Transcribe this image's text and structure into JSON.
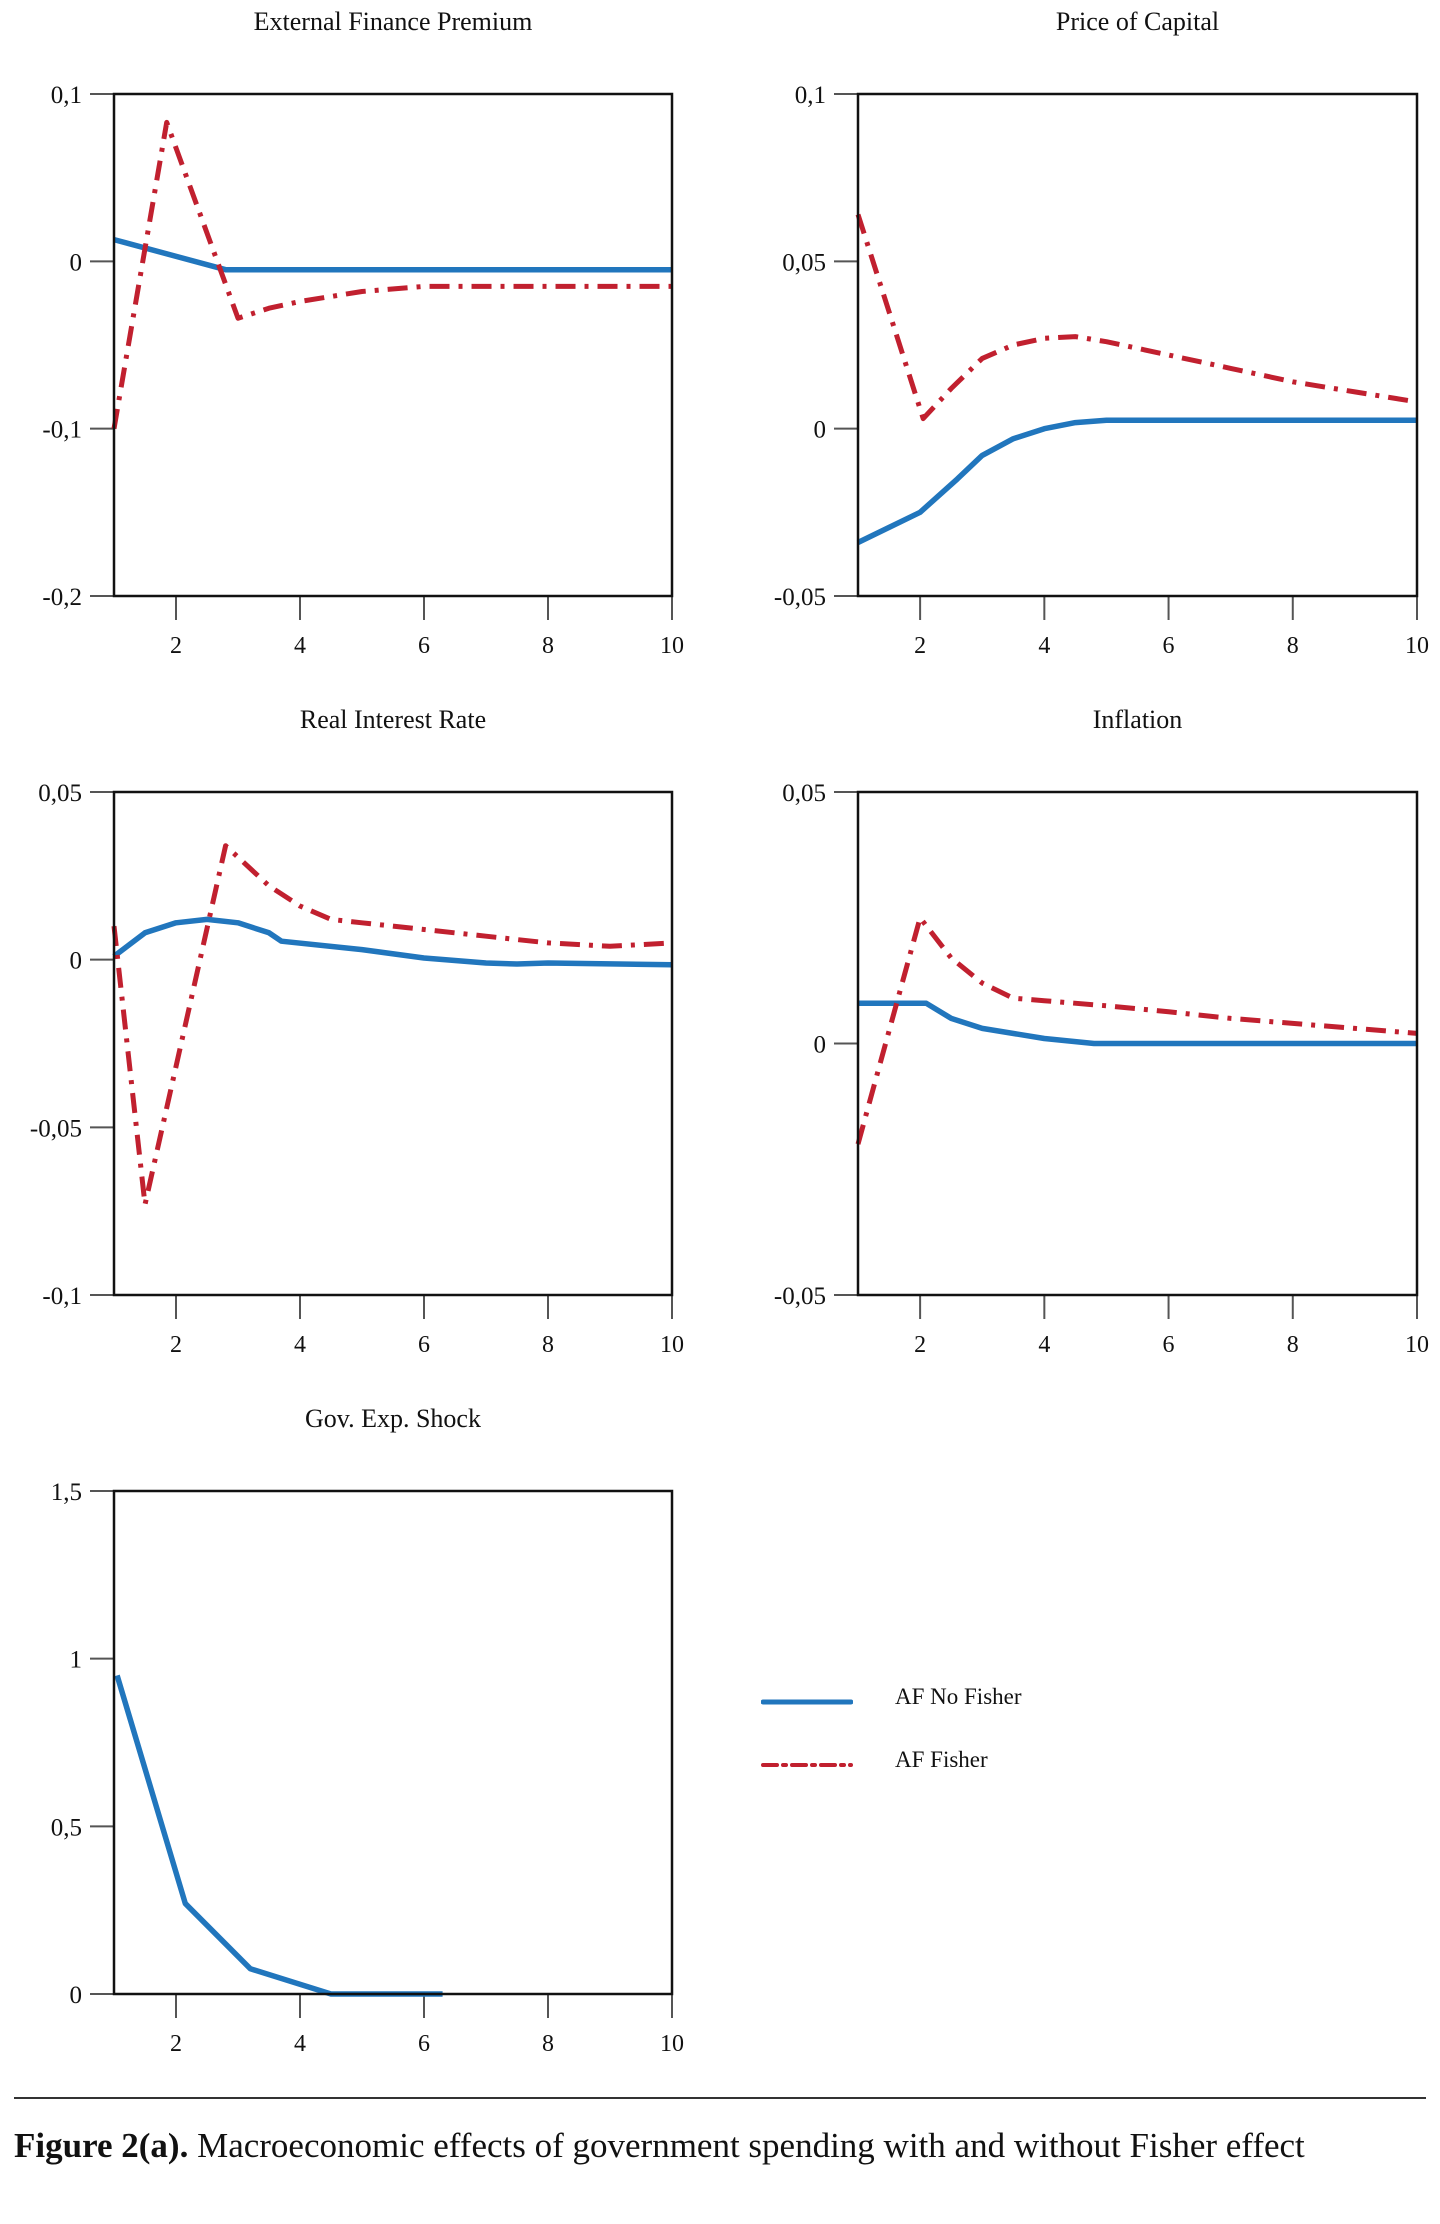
{
  "colors": {
    "no_fisher": "#2176bd",
    "fisher": "#c1202f"
  },
  "legend": [
    {
      "label": "AF No Fisher",
      "style": "solid",
      "color": "#2176bd"
    },
    {
      "label": "AF Fisher",
      "style": "dash-dot",
      "color": "#c1202f"
    }
  ],
  "caption": {
    "label": "Figure 2(a).",
    "text": "Macroeconomic effects of government spending with and without Fisher effect"
  },
  "chart_data": [
    {
      "type": "line",
      "title": "External Finance Premium",
      "xlim": [
        1,
        10
      ],
      "ylim": [
        -0.2,
        0.1
      ],
      "xticks": [
        2,
        4,
        6,
        8,
        10
      ],
      "xtick_labels": [
        "2",
        "4",
        "6",
        "8",
        "10"
      ],
      "yticks": [
        0.1,
        0,
        -0.1,
        -0.2
      ],
      "ytick_labels": [
        "0,1",
        "0",
        "-0,1",
        "-0,2"
      ],
      "series": [
        {
          "name": "AF No Fisher",
          "x": [
            1,
            2.8,
            3,
            10
          ],
          "y": [
            0.013,
            -0.005,
            -0.005,
            -0.005
          ]
        },
        {
          "name": "AF Fisher",
          "x": [
            1,
            1.85,
            3,
            3.5,
            4,
            5,
            6,
            7,
            8,
            10
          ],
          "y": [
            -0.1,
            0.083,
            -0.034,
            -0.028,
            -0.024,
            -0.018,
            -0.015,
            -0.015,
            -0.015,
            -0.015
          ]
        }
      ]
    },
    {
      "type": "line",
      "title": "Price of Capital",
      "xlim": [
        1,
        10
      ],
      "ylim": [
        -0.05,
        0.1
      ],
      "xticks": [
        2,
        4,
        6,
        8,
        10
      ],
      "xtick_labels": [
        "2",
        "4",
        "6",
        "8",
        "10"
      ],
      "yticks": [
        0.1,
        0.05,
        0,
        -0.05
      ],
      "ytick_labels": [
        "0,1",
        "0,05",
        "0",
        "-0,05"
      ],
      "series": [
        {
          "name": "AF No Fisher",
          "x": [
            1,
            2,
            2.6,
            3,
            3.5,
            4,
            4.5,
            5,
            10
          ],
          "y": [
            -0.034,
            -0.025,
            -0.015,
            -0.008,
            -0.003,
            0,
            0.0018,
            0.0025,
            0.0025
          ]
        },
        {
          "name": "AF Fisher",
          "x": [
            1,
            2.05,
            2.5,
            3,
            3.5,
            4,
            4.5,
            5,
            6,
            7,
            8,
            9,
            10
          ],
          "y": [
            0.064,
            0.003,
            0.012,
            0.021,
            0.025,
            0.027,
            0.0275,
            0.026,
            0.022,
            0.018,
            0.014,
            0.011,
            0.008
          ]
        }
      ]
    },
    {
      "type": "line",
      "title": "Real Interest Rate",
      "xlim": [
        1,
        10
      ],
      "ylim": [
        -0.1,
        0.05
      ],
      "xticks": [
        2,
        4,
        6,
        8,
        10
      ],
      "xtick_labels": [
        "2",
        "4",
        "6",
        "8",
        "10"
      ],
      "yticks": [
        0.05,
        0,
        -0.05,
        -0.1
      ],
      "ytick_labels": [
        "0,05",
        "0",
        "-0,05",
        "-0,1"
      ],
      "series": [
        {
          "name": "AF No Fisher",
          "x": [
            1,
            1.5,
            2,
            2.5,
            3,
            3.5,
            3.7,
            5,
            6,
            7,
            7.5,
            8,
            10
          ],
          "y": [
            0.001,
            0.008,
            0.011,
            0.012,
            0.011,
            0.008,
            0.0055,
            0.003,
            0.0005,
            -0.001,
            -0.0013,
            -0.001,
            -0.0015
          ]
        },
        {
          "name": "AF Fisher",
          "x": [
            1,
            1.5,
            2.8,
            3.5,
            4,
            4.5,
            5,
            6,
            7,
            8,
            9,
            10
          ],
          "y": [
            0.01,
            -0.073,
            0.034,
            0.022,
            0.016,
            0.012,
            0.011,
            0.009,
            0.007,
            0.005,
            0.004,
            0.005
          ]
        }
      ]
    },
    {
      "type": "line",
      "title": "Inflation",
      "xlim": [
        1,
        10
      ],
      "ylim": [
        -0.05,
        0.05
      ],
      "xticks": [
        2,
        4,
        6,
        8,
        10
      ],
      "xtick_labels": [
        "2",
        "4",
        "6",
        "8",
        "10"
      ],
      "yticks": [
        0.05,
        0,
        -0.05
      ],
      "ytick_labels": [
        "0,05",
        "0",
        "-0,05"
      ],
      "series": [
        {
          "name": "AF No Fisher",
          "x": [
            1,
            2.1,
            2.5,
            3,
            4,
            4.8,
            10
          ],
          "y": [
            0.008,
            0.008,
            0.005,
            0.003,
            0.001,
            0,
            0
          ]
        },
        {
          "name": "AF Fisher",
          "x": [
            1,
            2,
            2.5,
            3,
            3.5,
            4,
            5,
            6,
            7,
            8,
            9,
            10
          ],
          "y": [
            -0.02,
            0.025,
            0.017,
            0.012,
            0.009,
            0.0085,
            0.0075,
            0.0063,
            0.005,
            0.004,
            0.003,
            0.002
          ]
        }
      ]
    },
    {
      "type": "line",
      "title": "Gov. Exp. Shock",
      "xlim": [
        1,
        10
      ],
      "ylim": [
        0,
        1.5
      ],
      "xticks": [
        2,
        4,
        6,
        8,
        10
      ],
      "xtick_labels": [
        "2",
        "4",
        "6",
        "8",
        "10"
      ],
      "yticks": [
        1.5,
        1,
        0.5,
        0
      ],
      "ytick_labels": [
        "1,5",
        "1",
        "0,5",
        "0"
      ],
      "series": [
        {
          "name": "AF No Fisher",
          "x": [
            1.05,
            2.15,
            3.2,
            4.5,
            6.3
          ],
          "y": [
            0.95,
            0.27,
            0.075,
            0,
            0
          ]
        }
      ]
    }
  ]
}
